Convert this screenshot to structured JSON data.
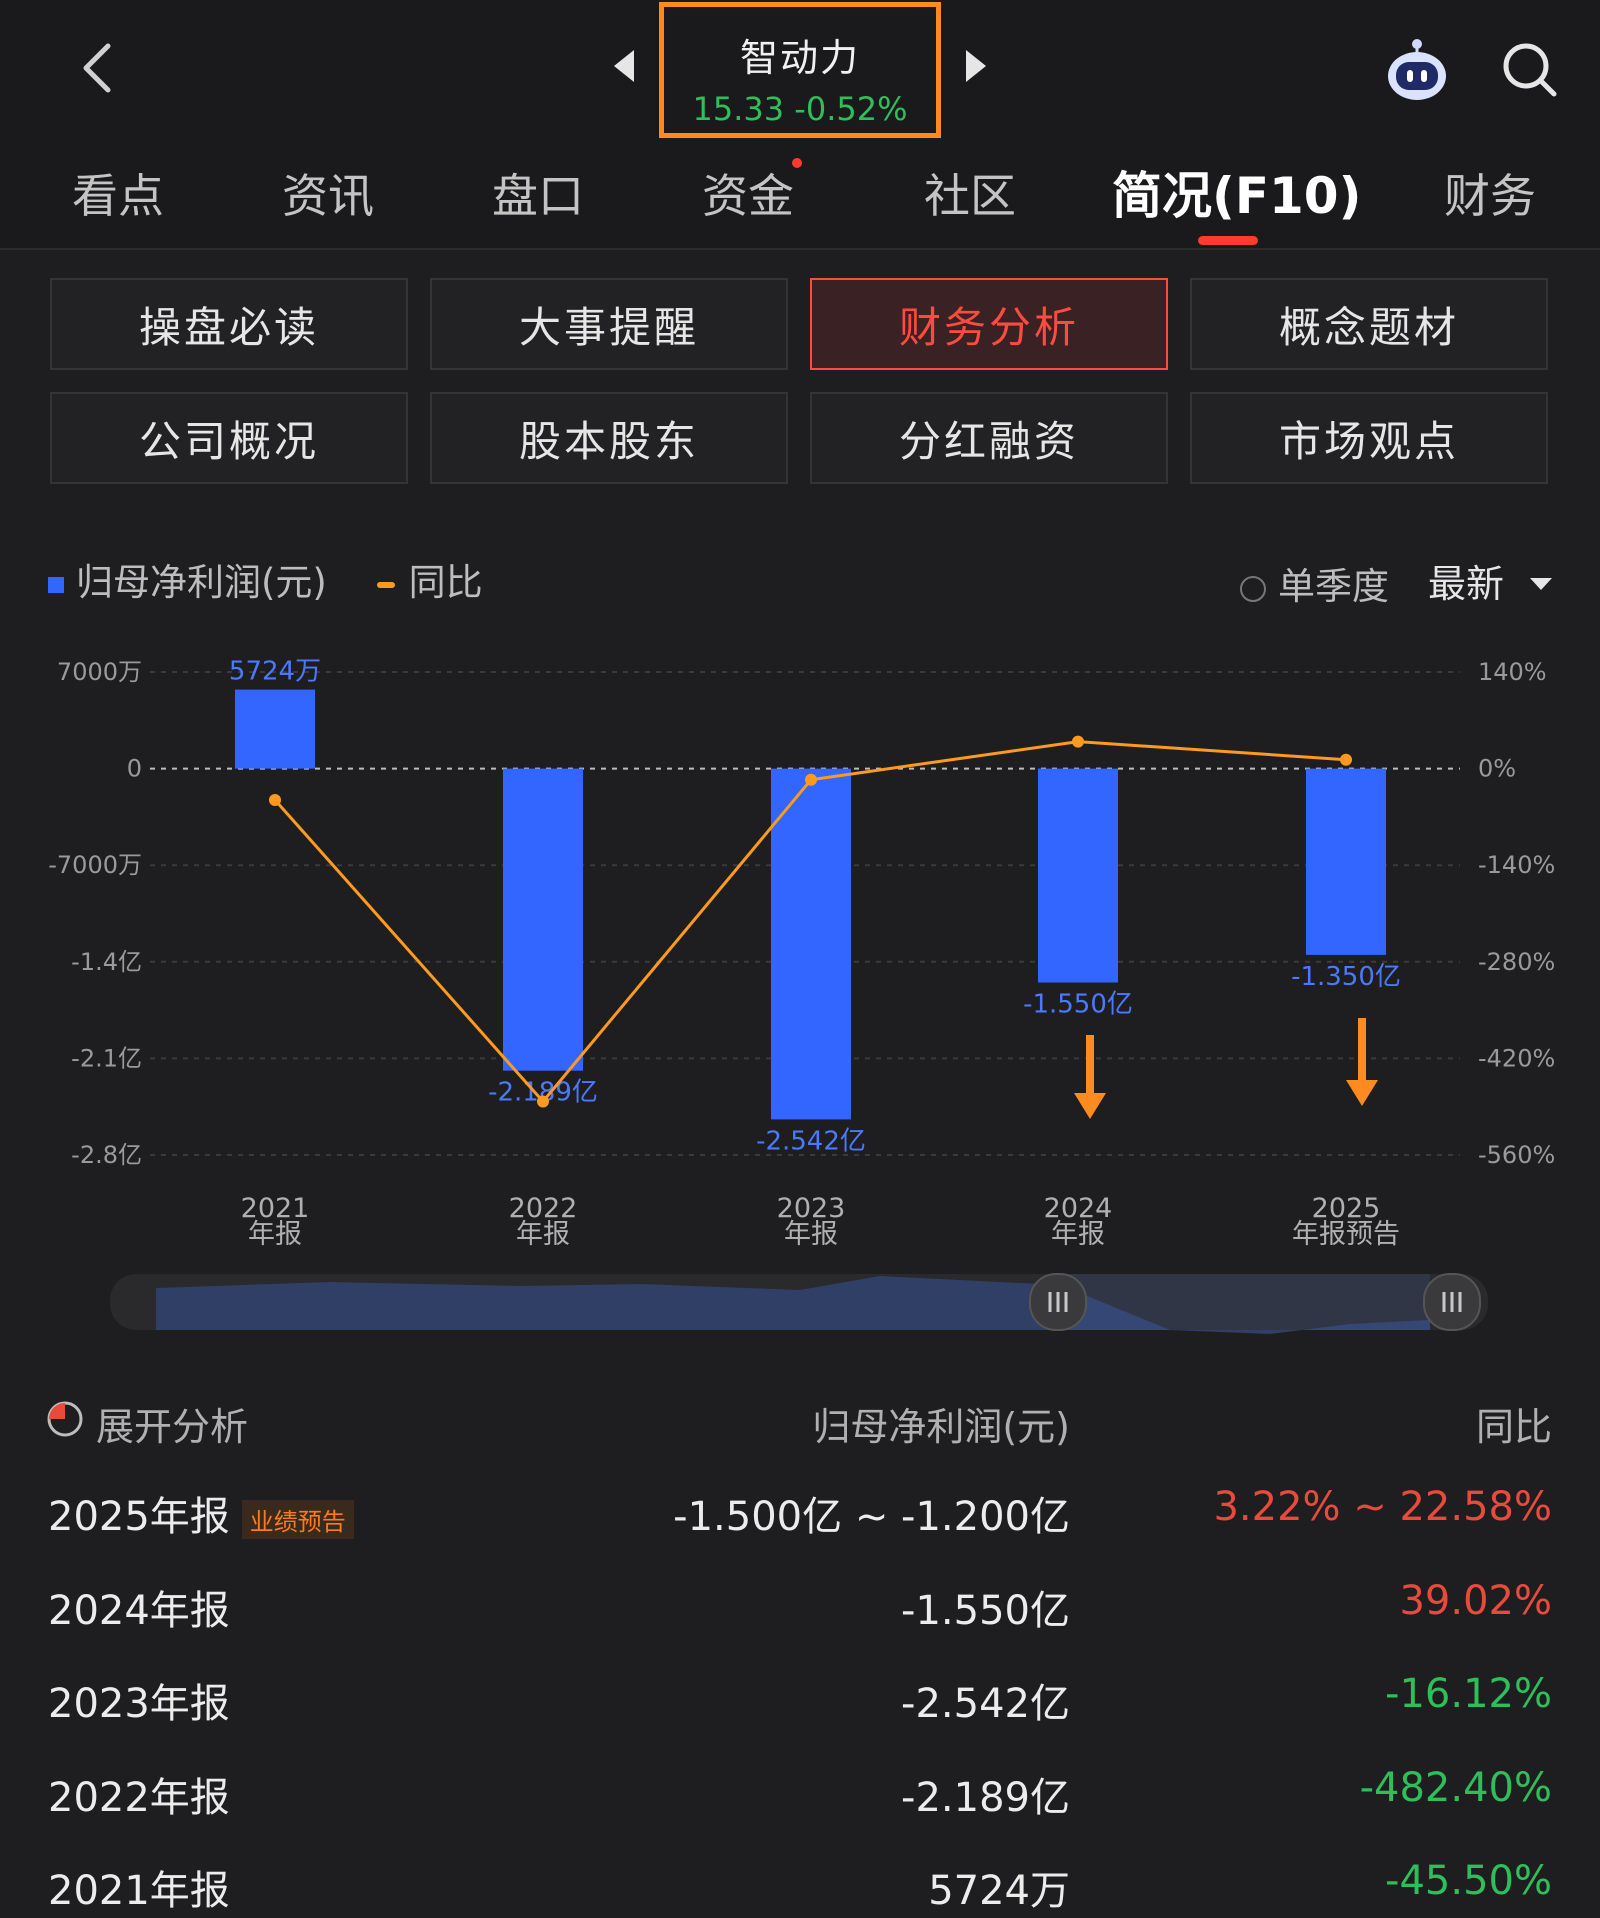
{
  "header": {
    "stock_name": "智动力",
    "price": "15.33",
    "change": "-0.52%",
    "icons": [
      "back-icon",
      "prev-stock-icon",
      "next-stock-icon",
      "robot-assistant-icon",
      "search-icon"
    ]
  },
  "tabs": [
    {
      "label": "看点"
    },
    {
      "label": "资讯"
    },
    {
      "label": "盘口"
    },
    {
      "label": "资金"
    },
    {
      "label": "社区"
    },
    {
      "label": "简况(F10)",
      "active": true
    },
    {
      "label": "财务"
    }
  ],
  "sub_buttons": [
    {
      "label": "操盘必读"
    },
    {
      "label": "大事提醒"
    },
    {
      "label": "财务分析",
      "active": true
    },
    {
      "label": "概念题材"
    },
    {
      "label": "公司概况"
    },
    {
      "label": "股本股东"
    },
    {
      "label": "分红融资"
    },
    {
      "label": "市场观点"
    }
  ],
  "chart_controls": {
    "legend_profit": "归母净利润(元)",
    "legend_yoy": "同比",
    "single_quarter": "单季度",
    "latest": "最新"
  },
  "chart_data": {
    "type": "bar",
    "categories": [
      "2021\n年报",
      "2022\n年报",
      "2023\n年报",
      "2024\n年报",
      "2025\n年报预告"
    ],
    "series": [
      {
        "name": "归母净利润(元)",
        "type": "bar",
        "values": [
          57240000,
          -218900000,
          -254200000,
          -155000000,
          -135000000
        ],
        "labels": [
          "5724万",
          "-2.189亿",
          "-2.542亿",
          "-1.550亿",
          "-1.350亿"
        ],
        "color": "#3366ff"
      },
      {
        "name": "同比",
        "type": "line",
        "values": [
          -45.5,
          -482.4,
          -16.12,
          39.02,
          12.9
        ],
        "color": "#ff9a1f"
      }
    ],
    "left_axis": {
      "ticks": [
        "7000万",
        "0",
        "-7000万",
        "-1.4亿",
        "-2.1亿",
        "-2.8亿"
      ],
      "ylim": [
        -280000000,
        70000000
      ]
    },
    "right_axis": {
      "ticks": [
        "140%",
        "0%",
        "-140%",
        "-280%",
        "-420%",
        "-560%"
      ],
      "ylim": [
        -560,
        140
      ]
    },
    "annotations": [
      "down-arrow at 2024",
      "down-arrow at 2025"
    ]
  },
  "table": {
    "header_expand": "展开分析",
    "header_profit": "归母净利润(元)",
    "header_yoy": "同比",
    "rows": [
      {
        "period": "2025年报",
        "badge": "业绩预告",
        "profit": "-1.500亿 ~ -1.200亿",
        "yoy": "3.22% ~ 22.58%",
        "color": "#e84a3c"
      },
      {
        "period": "2024年报",
        "profit": "-1.550亿",
        "yoy": "39.02%",
        "color": "#e84a3c"
      },
      {
        "period": "2023年报",
        "profit": "-2.542亿",
        "yoy": "-16.12%",
        "color": "#2fbf5a"
      },
      {
        "period": "2022年报",
        "profit": "-2.189亿",
        "yoy": "-482.40%",
        "color": "#2fbf5a"
      },
      {
        "period": "2021年报",
        "profit": "5724万",
        "yoy": "-45.50%",
        "color": "#2fbf5a"
      }
    ]
  }
}
